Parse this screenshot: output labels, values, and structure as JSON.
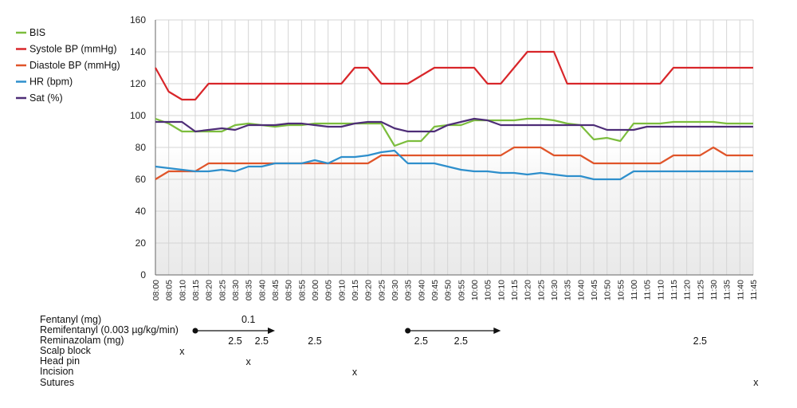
{
  "chart_data": {
    "type": "line",
    "title": "",
    "xlabel": "",
    "ylabel": "",
    "ylim": [
      0,
      160
    ],
    "yticks": [
      0,
      20,
      40,
      60,
      80,
      100,
      120,
      140,
      160
    ],
    "grid": true,
    "legend_position": "top-left",
    "categories": [
      "08:00",
      "08:05",
      "08:10",
      "08:15",
      "08:20",
      "08:25",
      "08:30",
      "08:35",
      "08:40",
      "08:45",
      "08:50",
      "08:55",
      "09:00",
      "09:05",
      "09:10",
      "09:15",
      "09:20",
      "09:25",
      "09:30",
      "09:35",
      "09:40",
      "09:45",
      "09:50",
      "09:55",
      "10:00",
      "10:05",
      "10:10",
      "10:15",
      "10:20",
      "10:25",
      "10:30",
      "10:35",
      "10:40",
      "10:45",
      "10:50",
      "10:55",
      "11:00",
      "11:05",
      "11:10",
      "11:15",
      "11:20",
      "11:25",
      "11:30",
      "11:35",
      "11:40",
      "11:45"
    ],
    "series": [
      {
        "name": "BIS",
        "color": "#7cbd3d",
        "values": [
          98,
          95,
          90,
          90,
          90,
          90,
          94,
          95,
          94,
          93,
          94,
          94,
          95,
          95,
          95,
          95,
          95,
          95,
          81,
          84,
          84,
          93,
          94,
          94,
          97,
          97,
          97,
          97,
          98,
          98,
          97,
          95,
          94,
          85,
          86,
          84,
          95,
          95,
          95,
          96,
          96,
          96,
          96,
          95,
          95,
          95
        ]
      },
      {
        "name": "Systole BP (mmHg)",
        "color": "#d8262a",
        "values": [
          130,
          115,
          110,
          110,
          120,
          120,
          120,
          120,
          120,
          120,
          120,
          120,
          120,
          120,
          120,
          130,
          130,
          120,
          120,
          120,
          125,
          130,
          130,
          130,
          130,
          120,
          120,
          130,
          140,
          140,
          140,
          120,
          120,
          120,
          120,
          120,
          120,
          120,
          120,
          130,
          130,
          130,
          130,
          130,
          130,
          130
        ]
      },
      {
        "name": "Diastole BP (mmHg)",
        "color": "#e0552a",
        "values": [
          60,
          65,
          65,
          65,
          70,
          70,
          70,
          70,
          70,
          70,
          70,
          70,
          70,
          70,
          70,
          70,
          70,
          75,
          75,
          75,
          75,
          75,
          75,
          75,
          75,
          75,
          75,
          80,
          80,
          80,
          75,
          75,
          75,
          70,
          70,
          70,
          70,
          70,
          70,
          75,
          75,
          75,
          80,
          75,
          75,
          75
        ]
      },
      {
        "name": "HR (bpm)",
        "color": "#2e8fcc",
        "values": [
          68,
          67,
          66,
          65,
          65,
          66,
          65,
          68,
          68,
          70,
          70,
          70,
          72,
          70,
          74,
          74,
          75,
          77,
          78,
          70,
          70,
          70,
          68,
          66,
          65,
          65,
          64,
          64,
          63,
          64,
          63,
          62,
          62,
          60,
          60,
          60,
          65,
          65,
          65,
          65,
          65,
          65,
          65,
          65,
          65,
          65
        ]
      },
      {
        "name": "Sat (%)",
        "color": "#4e2d77",
        "values": [
          96,
          96,
          96,
          90,
          91,
          92,
          91,
          94,
          94,
          94,
          95,
          95,
          94,
          93,
          93,
          95,
          96,
          96,
          92,
          90,
          90,
          90,
          94,
          96,
          98,
          97,
          94,
          94,
          94,
          94,
          94,
          94,
          94,
          94,
          91,
          91,
          91,
          93,
          93,
          93,
          93,
          93,
          93,
          93,
          93,
          93
        ]
      }
    ]
  },
  "annotations": {
    "rows": [
      "Fentanyl (mg)",
      "Remifentanyl (0.003 µg/kg/min)",
      "Reminazolam (mg)",
      "Scalp block",
      "Head pin",
      "Incision",
      "Sutures"
    ],
    "fentanyl": [
      {
        "time": "08:35",
        "text": "0.1"
      }
    ],
    "remifentanyl_infusions": [
      {
        "start": "08:15",
        "end": "08:45"
      },
      {
        "start": "09:35",
        "end": "10:10"
      }
    ],
    "reminazolam": [
      {
        "time": "08:30",
        "text": "2.5"
      },
      {
        "time": "08:40",
        "text": "2.5"
      },
      {
        "time": "09:00",
        "text": "2.5"
      },
      {
        "time": "09:40",
        "text": "2.5"
      },
      {
        "time": "09:55",
        "text": "2.5"
      },
      {
        "time": "11:25",
        "text": "2.5"
      }
    ],
    "scalp_block": [
      {
        "time": "08:10",
        "text": "x"
      }
    ],
    "head_pin": [
      {
        "time": "08:35",
        "text": "x"
      }
    ],
    "incision": [
      {
        "time": "09:15",
        "text": "x"
      }
    ],
    "sutures": [
      {
        "time": "11:46",
        "text": "x"
      }
    ]
  }
}
